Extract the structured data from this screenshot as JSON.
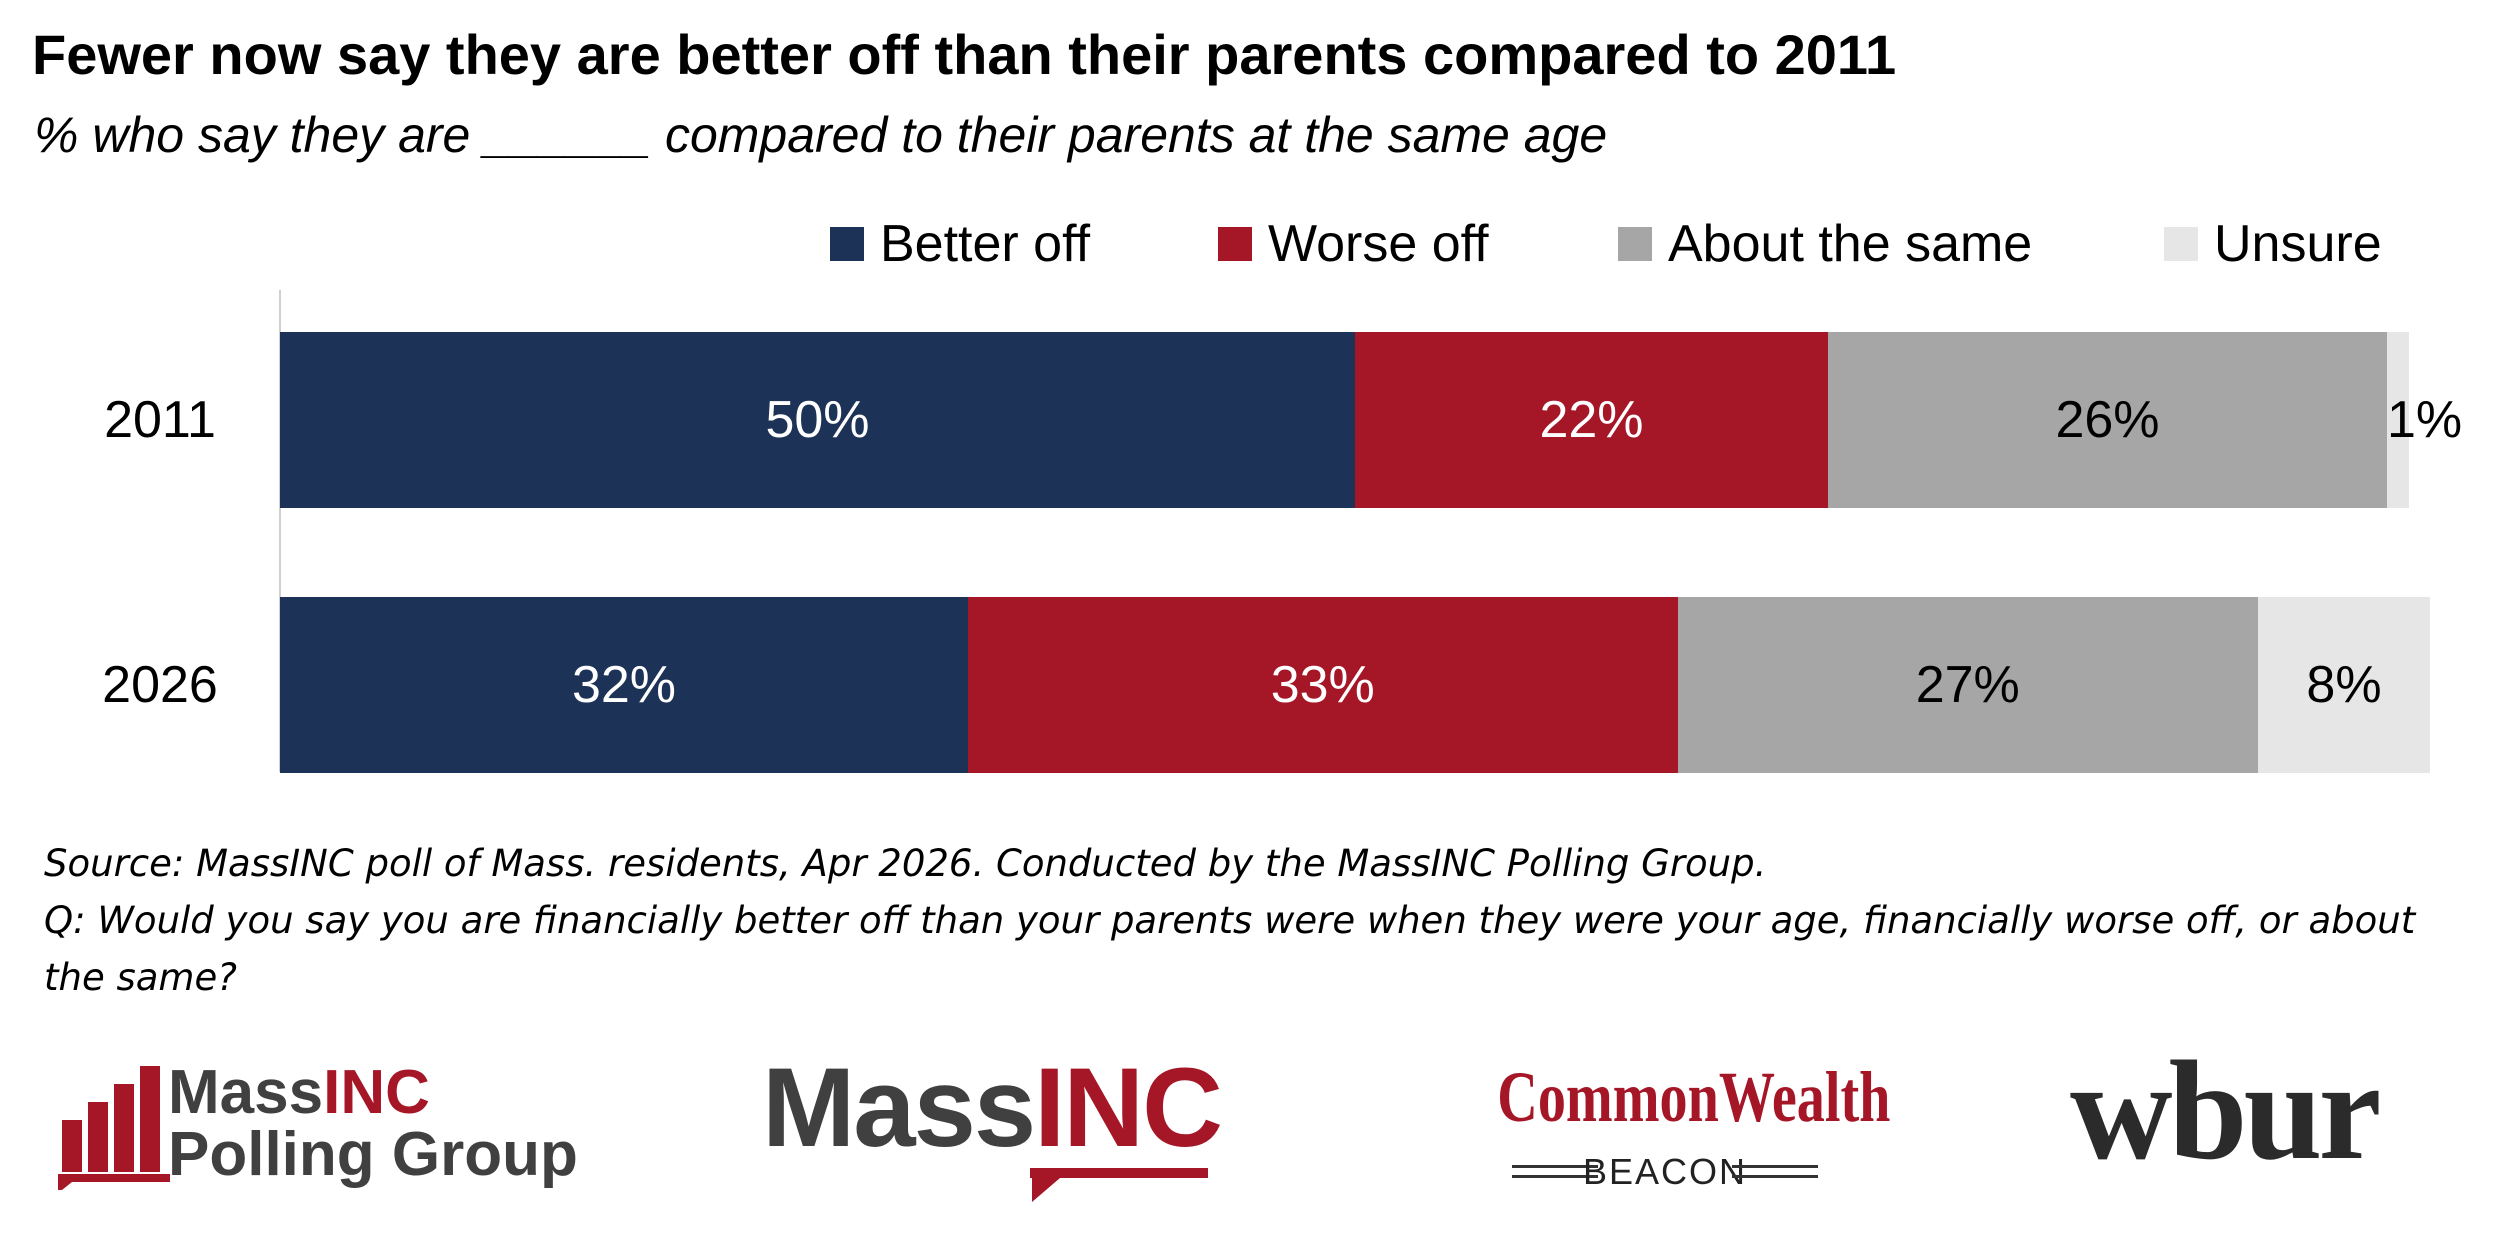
{
  "chart_data": {
    "type": "bar",
    "orientation": "horizontal",
    "stacked": true,
    "title": "Fewer now say they are better off than their parents compared to 2011",
    "subtitle": "% who say they are ______ compared to their parents at the same age",
    "categories": [
      "2011",
      "2026"
    ],
    "series": [
      {
        "name": "Better off",
        "color": "#1c3256",
        "label_color": "#ffffff",
        "values": [
          50,
          32
        ],
        "labels": [
          "50%",
          "32%"
        ]
      },
      {
        "name": "Worse off",
        "color": "#a51627",
        "label_color": "#ffffff",
        "values": [
          22,
          33
        ],
        "labels": [
          "22%",
          "33%"
        ]
      },
      {
        "name": "About the same",
        "color": "#a6a6a6",
        "label_color": "#000000",
        "values": [
          26,
          27
        ],
        "labels": [
          "26%",
          "27%"
        ]
      },
      {
        "name": "Unsure",
        "color": "#e6e6e6",
        "label_color": "#000000",
        "values": [
          1,
          8
        ],
        "labels": [
          "1%",
          "8%"
        ]
      }
    ],
    "xlim": [
      0,
      100
    ],
    "legend_position": "top-right",
    "grid": false
  },
  "footer": {
    "source": "Source: MassINC poll of Mass. residents, Apr 2026. Conducted by the MassINC Polling Group.",
    "question_line1": "Q: Would you say you are financially better off than your parents were when they were your age, financially worse off, or about",
    "question_line2": "the same?"
  },
  "logos": {
    "massinc_polling_line1_a": "Mass",
    "massinc_polling_line1_b": "INC",
    "massinc_polling_line2": "Polling Group",
    "massinc_a": "Mass",
    "massinc_b": "INC",
    "commonwealth": "CommonWealth",
    "beacon": "BEACON",
    "wbur": "wbur"
  }
}
